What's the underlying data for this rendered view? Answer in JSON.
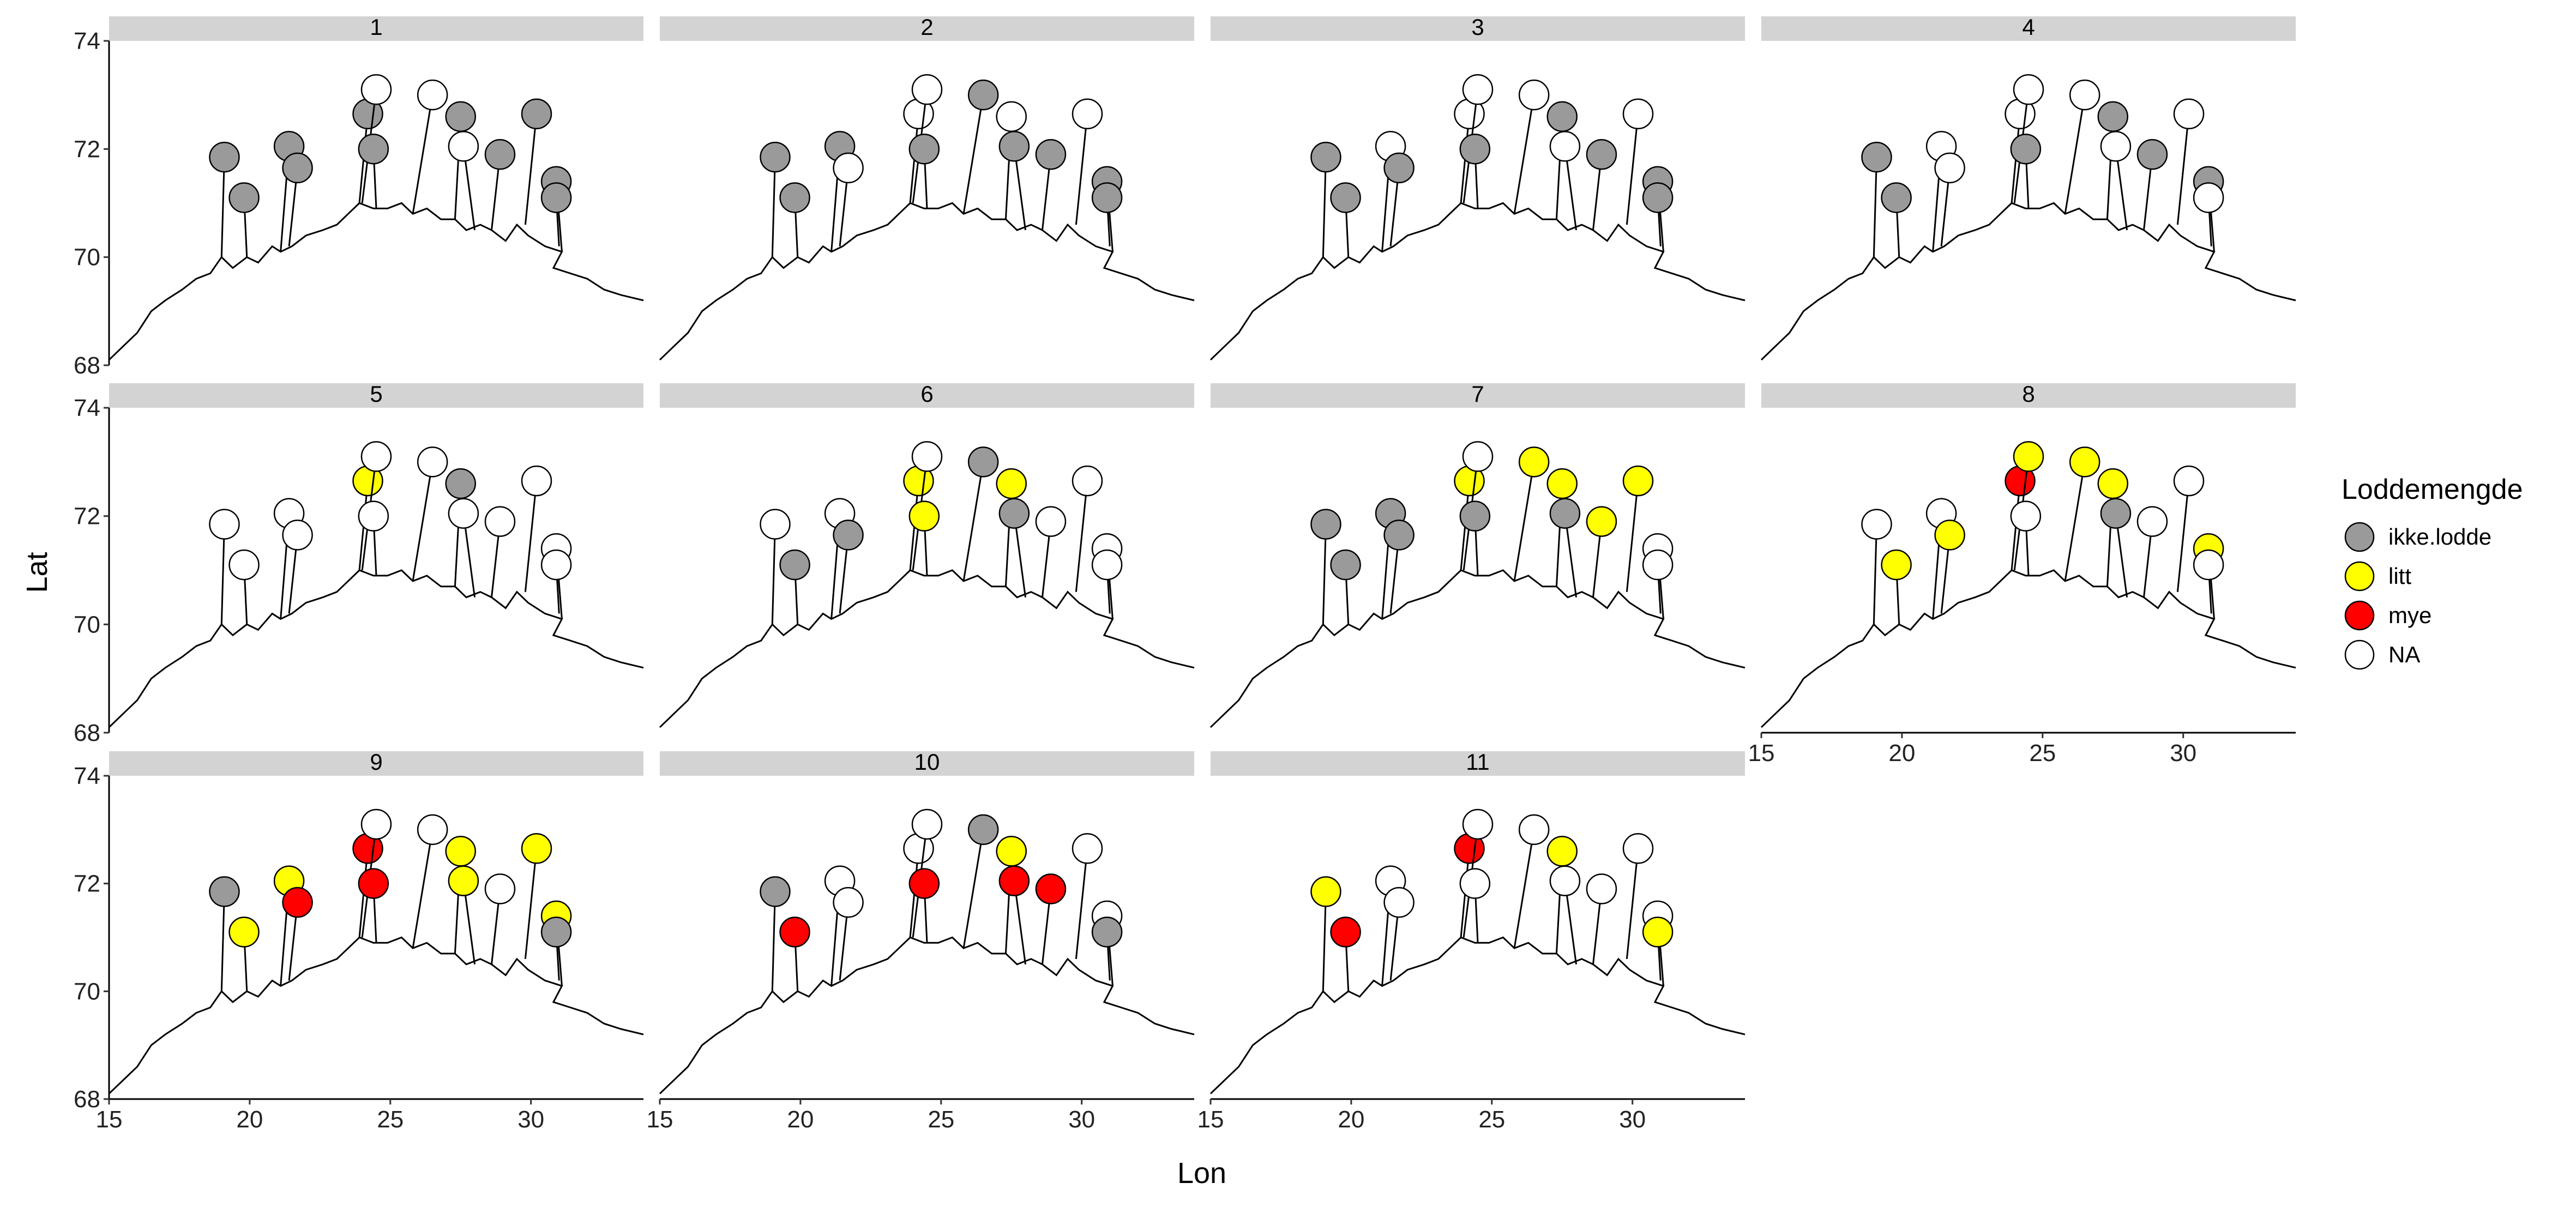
{
  "chart_data": {
    "type": "scatter",
    "facets": [
      "1",
      "2",
      "3",
      "4",
      "5",
      "6",
      "7",
      "8",
      "9",
      "10",
      "11"
    ],
    "xlabel": "Lon",
    "ylabel": "Lat",
    "xlim": [
      15,
      34
    ],
    "ylim": [
      68,
      74
    ],
    "x_ticks": [
      "15",
      "20",
      "25",
      "30"
    ],
    "y_ticks": [
      "68",
      "70",
      "72",
      "74"
    ],
    "legend": {
      "title": "Loddemengde",
      "position": "right",
      "entries": [
        {
          "key": "ikke.lodde",
          "label": "ikke.lodde"
        },
        {
          "key": "litt",
          "label": "litt"
        },
        {
          "key": "mye",
          "label": "mye"
        },
        {
          "key": "NA",
          "label": "NA"
        }
      ]
    },
    "colors": {
      "ikke.lodde": "#9a9a9a",
      "litt": "#ffff00",
      "mye": "#ff0000",
      "NA": "#ffffff"
    },
    "grid": false,
    "stations": [
      {
        "lon": 19.1,
        "lat": 71.85,
        "base_lon": 19.0,
        "base_lat": 70.0
      },
      {
        "lon": 19.8,
        "lat": 71.1,
        "base_lon": 19.9,
        "base_lat": 70.0
      },
      {
        "lon": 21.4,
        "lat": 72.05,
        "base_lon": 21.1,
        "base_lat": 70.1
      },
      {
        "lon": 21.7,
        "lat": 71.65,
        "base_lon": 21.4,
        "base_lat": 70.2
      },
      {
        "lon": 24.2,
        "lat": 72.65,
        "base_lon": 23.9,
        "base_lat": 71.0
      },
      {
        "lon": 24.5,
        "lat": 73.1,
        "base_lon": 24.0,
        "base_lat": 71.0
      },
      {
        "lon": 24.4,
        "lat": 72.0,
        "base_lon": 24.5,
        "base_lat": 70.9
      },
      {
        "lon": 26.5,
        "lat": 73.0,
        "base_lon": 25.8,
        "base_lat": 70.8
      },
      {
        "lon": 27.5,
        "lat": 72.6,
        "base_lon": 27.3,
        "base_lat": 70.7
      },
      {
        "lon": 27.6,
        "lat": 72.05,
        "base_lon": 28.0,
        "base_lat": 70.5
      },
      {
        "lon": 28.9,
        "lat": 71.9,
        "base_lon": 28.6,
        "base_lat": 70.5
      },
      {
        "lon": 30.2,
        "lat": 72.65,
        "base_lon": 29.8,
        "base_lat": 70.6
      },
      {
        "lon": 30.9,
        "lat": 71.4,
        "base_lon": 31.1,
        "base_lat": 70.1
      },
      {
        "lon": 30.9,
        "lat": 71.1,
        "base_lon": 31.0,
        "base_lat": 70.2
      }
    ],
    "series": [
      {
        "facet": "1",
        "values": [
          "ikke.lodde",
          "ikke.lodde",
          "ikke.lodde",
          "ikke.lodde",
          "ikke.lodde",
          "NA",
          "ikke.lodde",
          "NA",
          "ikke.lodde",
          "NA",
          "ikke.lodde",
          "ikke.lodde",
          "ikke.lodde",
          "ikke.lodde"
        ]
      },
      {
        "facet": "2",
        "values": [
          "ikke.lodde",
          "ikke.lodde",
          "ikke.lodde",
          "NA",
          "NA",
          "NA",
          "ikke.lodde",
          "ikke.lodde",
          "NA",
          "ikke.lodde",
          "ikke.lodde",
          "NA",
          "ikke.lodde",
          "ikke.lodde"
        ]
      },
      {
        "facet": "3",
        "values": [
          "ikke.lodde",
          "ikke.lodde",
          "NA",
          "ikke.lodde",
          "NA",
          "NA",
          "ikke.lodde",
          "NA",
          "ikke.lodde",
          "NA",
          "ikke.lodde",
          "NA",
          "ikke.lodde",
          "ikke.lodde"
        ]
      },
      {
        "facet": "4",
        "values": [
          "ikke.lodde",
          "ikke.lodde",
          "NA",
          "NA",
          "NA",
          "NA",
          "ikke.lodde",
          "NA",
          "ikke.lodde",
          "NA",
          "ikke.lodde",
          "NA",
          "ikke.lodde",
          "NA"
        ]
      },
      {
        "facet": "5",
        "values": [
          "NA",
          "NA",
          "NA",
          "NA",
          "litt",
          "NA",
          "NA",
          "NA",
          "ikke.lodde",
          "NA",
          "NA",
          "NA",
          "NA",
          "NA"
        ]
      },
      {
        "facet": "6",
        "values": [
          "NA",
          "ikke.lodde",
          "NA",
          "ikke.lodde",
          "litt",
          "NA",
          "litt",
          "ikke.lodde",
          "litt",
          "ikke.lodde",
          "NA",
          "NA",
          "NA",
          "NA"
        ]
      },
      {
        "facet": "7",
        "values": [
          "ikke.lodde",
          "ikke.lodde",
          "ikke.lodde",
          "ikke.lodde",
          "litt",
          "NA",
          "ikke.lodde",
          "litt",
          "litt",
          "ikke.lodde",
          "litt",
          "litt",
          "NA",
          "NA"
        ]
      },
      {
        "facet": "8",
        "values": [
          "NA",
          "litt",
          "NA",
          "litt",
          "mye",
          "litt",
          "NA",
          "litt",
          "litt",
          "ikke.lodde",
          "NA",
          "NA",
          "litt",
          "NA"
        ]
      },
      {
        "facet": "9",
        "values": [
          "ikke.lodde",
          "litt",
          "litt",
          "mye",
          "mye",
          "NA",
          "mye",
          "NA",
          "litt",
          "litt",
          "NA",
          "litt",
          "litt",
          "ikke.lodde"
        ]
      },
      {
        "facet": "10",
        "values": [
          "ikke.lodde",
          "mye",
          "NA",
          "NA",
          "NA",
          "NA",
          "mye",
          "ikke.lodde",
          "litt",
          "mye",
          "mye",
          "NA",
          "NA",
          "ikke.lodde"
        ]
      },
      {
        "facet": "11",
        "values": [
          "litt",
          "mye",
          "NA",
          "NA",
          "mye",
          "NA",
          "NA",
          "NA",
          "litt",
          "NA",
          "NA",
          "NA",
          "NA",
          "litt"
        ]
      }
    ],
    "coastline": [
      [
        15.0,
        68.1
      ],
      [
        15.6,
        68.4
      ],
      [
        16.0,
        68.6
      ],
      [
        16.5,
        69.0
      ],
      [
        17.0,
        69.2
      ],
      [
        17.6,
        69.4
      ],
      [
        18.1,
        69.6
      ],
      [
        18.6,
        69.7
      ],
      [
        19.0,
        70.0
      ],
      [
        19.4,
        69.8
      ],
      [
        19.9,
        70.0
      ],
      [
        20.3,
        69.9
      ],
      [
        20.8,
        70.2
      ],
      [
        21.1,
        70.1
      ],
      [
        21.5,
        70.2
      ],
      [
        22.0,
        70.4
      ],
      [
        22.6,
        70.5
      ],
      [
        23.1,
        70.6
      ],
      [
        23.5,
        70.8
      ],
      [
        23.9,
        71.0
      ],
      [
        24.4,
        70.9
      ],
      [
        24.9,
        70.9
      ],
      [
        25.4,
        71.0
      ],
      [
        25.8,
        70.8
      ],
      [
        26.3,
        70.9
      ],
      [
        26.8,
        70.7
      ],
      [
        27.3,
        70.7
      ],
      [
        27.7,
        70.5
      ],
      [
        28.2,
        70.6
      ],
      [
        28.6,
        70.5
      ],
      [
        29.1,
        70.3
      ],
      [
        29.5,
        70.6
      ],
      [
        29.9,
        70.4
      ],
      [
        30.5,
        70.2
      ],
      [
        31.1,
        70.1
      ],
      [
        30.8,
        69.8
      ],
      [
        31.4,
        69.7
      ],
      [
        32.0,
        69.6
      ],
      [
        32.6,
        69.4
      ],
      [
        33.2,
        69.3
      ],
      [
        34.0,
        69.2
      ]
    ]
  }
}
